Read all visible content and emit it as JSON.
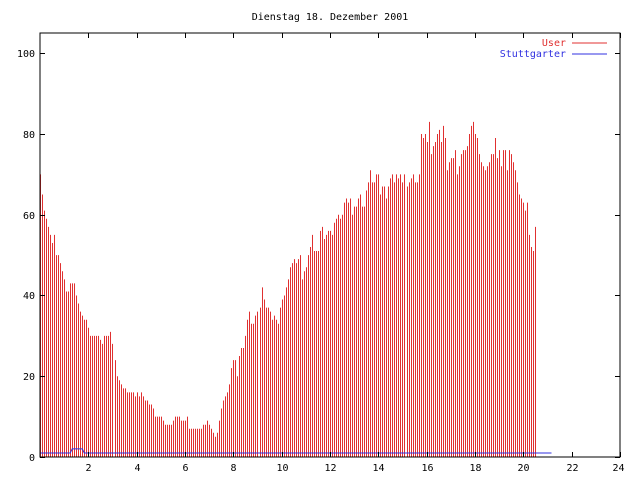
{
  "chart_data": {
    "type": "bar",
    "title": "Dienstag 18. Dezember 2001",
    "xlabel": "",
    "ylabel": "",
    "xlim": [
      0,
      24
    ],
    "ylim": [
      0,
      105
    ],
    "x_ticks": [
      2,
      4,
      6,
      8,
      10,
      12,
      14,
      16,
      18,
      20,
      22,
      24
    ],
    "y_ticks": [
      0,
      20,
      40,
      60,
      80,
      100
    ],
    "grid": false,
    "legend_position": "top-right",
    "sample_interval_hours": 0.08333,
    "series": [
      {
        "name": "User",
        "style": "impulses",
        "color": "#e03030",
        "values": [
          70,
          65,
          61,
          59,
          57,
          55,
          53,
          55,
          50,
          50,
          48,
          46,
          44,
          41,
          41,
          43,
          43,
          43,
          40,
          38,
          36,
          35,
          34,
          34,
          32,
          30,
          30,
          30,
          30,
          30,
          29,
          28,
          30,
          30,
          30,
          31,
          28,
          24,
          20,
          19,
          18,
          17,
          17,
          16,
          16,
          16,
          16,
          15,
          16,
          15,
          16,
          15,
          14,
          14,
          13,
          13,
          12,
          10,
          10,
          10,
          10,
          9,
          8,
          8,
          8,
          8,
          9,
          10,
          10,
          10,
          9,
          9,
          9,
          10,
          7,
          7,
          7,
          7,
          7,
          7,
          7,
          8,
          8,
          9,
          8,
          7,
          6,
          5,
          6,
          9,
          12,
          14,
          15,
          16,
          18,
          22,
          24,
          24,
          20,
          25,
          27,
          27,
          30,
          34,
          36,
          33,
          33,
          35,
          36,
          37,
          42,
          39,
          37,
          37,
          36,
          34,
          35,
          34,
          33,
          37,
          39,
          40,
          42,
          44,
          47,
          48,
          49,
          48,
          49,
          50,
          44,
          46,
          47,
          50,
          52,
          55,
          51,
          51,
          51,
          56,
          57,
          54,
          55,
          56,
          56,
          55,
          58,
          59,
          60,
          59,
          60,
          63,
          64,
          63,
          64,
          60,
          62,
          62,
          64,
          65,
          62,
          62,
          66,
          68,
          71,
          68,
          68,
          70,
          70,
          65,
          67,
          67,
          64,
          67,
          69,
          70,
          68,
          70,
          69,
          70,
          68,
          70,
          67,
          68,
          69,
          70,
          68,
          68,
          70,
          80,
          79,
          80,
          78,
          83,
          75,
          77,
          78,
          80,
          81,
          78,
          82,
          79,
          71,
          73,
          74,
          74,
          76,
          70,
          72,
          75,
          76,
          76,
          77,
          80,
          82,
          83,
          80,
          79,
          75,
          73,
          72,
          71,
          72,
          73,
          75,
          75,
          79,
          74,
          76,
          72,
          76,
          76,
          71,
          76,
          75,
          73,
          71,
          68,
          65,
          64,
          63,
          61,
          63,
          55,
          52,
          51,
          57
        ]
      },
      {
        "name": "Stuttgarter",
        "style": "lines",
        "color": "#3030e0",
        "values": [
          1,
          1,
          1,
          1,
          1,
          1,
          1,
          1,
          1,
          1,
          1,
          1,
          1,
          1,
          1,
          1,
          2,
          2,
          2,
          2,
          2,
          2,
          1,
          1,
          1,
          1,
          1,
          1,
          1,
          1,
          1,
          1,
          1,
          1,
          1,
          1,
          1,
          1,
          1,
          1,
          1,
          1,
          1,
          1,
          1,
          1,
          1,
          1,
          1,
          1,
          1,
          1,
          1,
          1,
          1,
          1,
          1,
          1,
          1,
          1,
          1,
          1,
          1,
          1,
          1,
          1,
          1,
          1,
          1,
          1,
          1,
          1,
          1,
          1,
          1,
          1,
          1,
          1,
          1,
          1,
          1,
          1,
          1,
          1,
          1,
          1,
          1,
          1,
          1,
          1,
          1,
          1,
          1,
          1,
          1,
          1,
          1,
          1,
          1,
          1,
          1,
          1,
          1,
          1,
          1,
          1,
          1,
          1,
          1,
          1,
          1,
          1,
          1,
          1,
          1,
          1,
          1,
          1,
          1,
          1,
          1,
          1,
          1,
          1,
          1,
          1,
          1,
          1,
          1,
          1,
          1,
          1,
          1,
          1,
          1,
          1,
          1,
          1,
          1,
          1,
          1,
          1,
          1,
          1,
          1,
          1,
          1,
          1,
          1,
          1,
          1,
          1,
          1,
          1,
          1,
          1,
          1,
          1,
          1,
          1,
          1,
          1,
          1,
          1,
          1,
          1,
          1,
          1,
          1,
          1,
          1,
          1,
          1,
          1,
          1,
          1,
          1,
          1,
          1,
          1,
          1,
          1,
          1,
          1,
          1,
          1,
          1,
          1,
          1,
          1,
          1,
          1,
          1,
          1,
          1,
          1,
          1,
          1,
          1,
          1,
          1,
          1,
          1,
          1,
          1,
          1,
          1,
          1,
          1,
          1,
          1,
          1,
          1,
          1,
          1,
          1,
          1,
          1,
          1,
          1,
          1,
          1,
          1,
          1,
          1,
          1,
          1,
          1,
          1,
          1,
          1,
          1,
          1,
          1,
          1,
          1,
          1,
          1,
          1,
          1,
          1,
          1,
          1,
          1,
          1,
          1,
          1,
          1,
          1,
          1,
          1,
          1,
          1,
          1,
          1
        ]
      }
    ]
  }
}
